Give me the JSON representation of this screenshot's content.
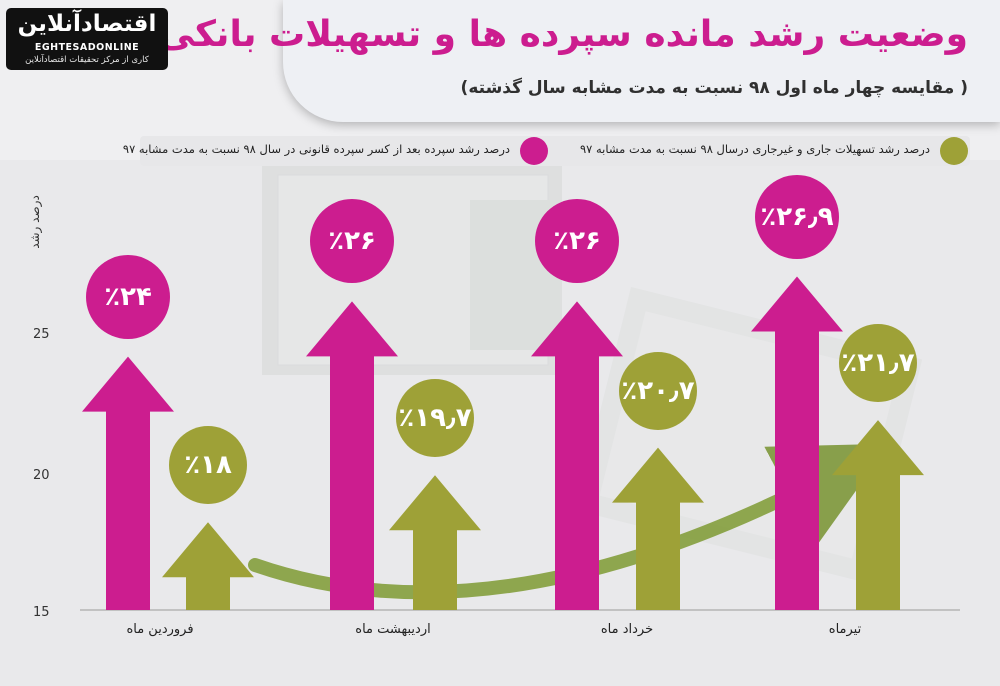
{
  "header": {
    "title": "وضعیت رشد مانده سپرده ها و تسهیلات بانکی",
    "subtitle": "( مقایسه چهار ماه اول ۹۸ نسبت به مدت مشابه سال گذشته)"
  },
  "logo": {
    "fa": "اقتصادآنلاین",
    "en": "EGHTESADONLINE",
    "tag": "کاری از مرکز تحقیقات اقتصادآنلاین"
  },
  "colors": {
    "deposit": "#cc1d8f",
    "loan": "#9ea137",
    "background_grey": "#e9e9eb"
  },
  "chart_data": {
    "type": "bar",
    "ylabel": "درصد رشد",
    "ylim": [
      15,
      28
    ],
    "yticks": [
      "15",
      "20",
      "25"
    ],
    "categories": [
      "فروردین ماه",
      "اردیبهشت ماه",
      "خرداد ماه",
      "تیرماه"
    ],
    "series": [
      {
        "name": "درصد رشد سپرده بعد از کسر سپرده قانونی در سال ۹۸ نسبت به مدت مشابه ۹۷",
        "values": [
          24,
          26,
          26,
          26.9
        ],
        "labels": [
          "٪۲۴",
          "٪۲۶",
          "٪۲۶",
          "٪۲۶٫۹"
        ]
      },
      {
        "name": "درصد رشد تسهیلات جاری و غیرجاری درسال ۹۸ نسبت به مدت مشابه ۹۷",
        "values": [
          18,
          19.7,
          20.7,
          21.7
        ],
        "labels": [
          "٪۱۸",
          "٪۱۹٫۷",
          "٪۲۰٫۷",
          "٪۲۱٫۷"
        ]
      }
    ]
  }
}
